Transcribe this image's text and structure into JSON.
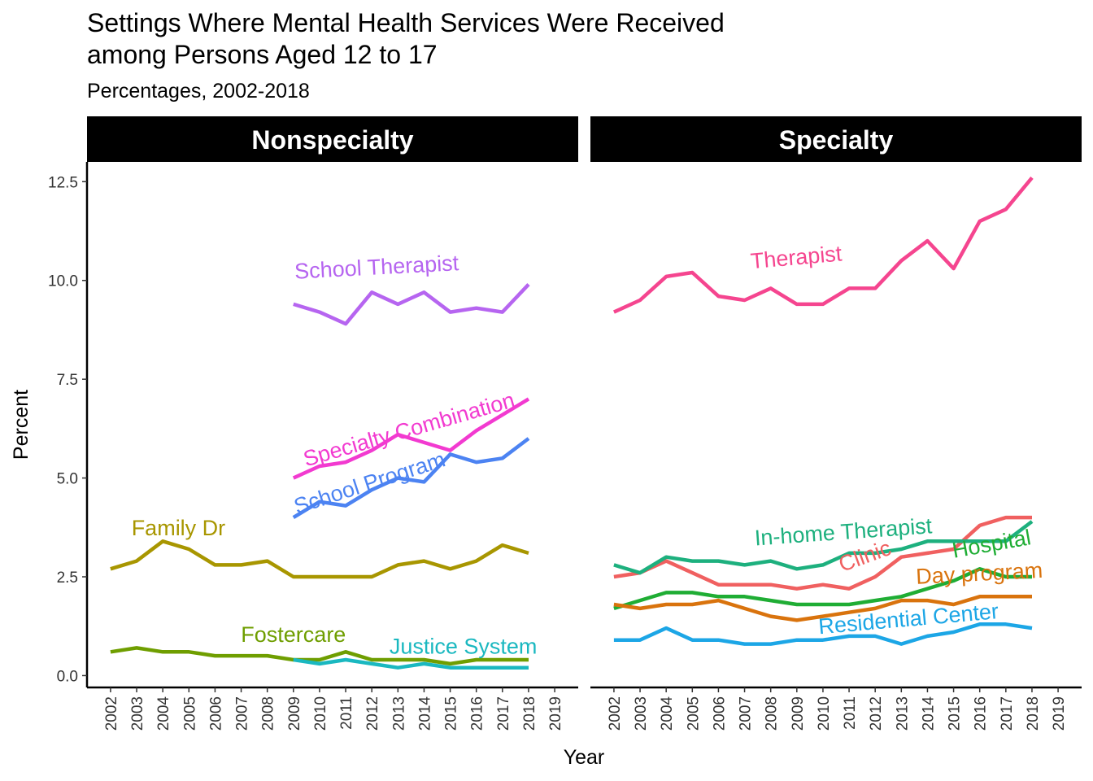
{
  "chart_data": {
    "type": "line",
    "title_line1": "Settings Where Mental Health Services Were Received",
    "title_line2": "among Persons Aged 12 to 17",
    "subtitle": "Percentages, 2002-2018",
    "xlabel": "Year",
    "ylabel": "Percent",
    "ylim": [
      -0.3,
      13.0
    ],
    "y_ticks": [
      "0.0",
      "2.5",
      "5.0",
      "7.5",
      "10.0",
      "12.5"
    ],
    "x_ticks": [
      "2002",
      "2003",
      "2004",
      "2005",
      "2006",
      "2007",
      "2008",
      "2009",
      "2010",
      "2011",
      "2012",
      "2013",
      "2014",
      "2015",
      "2016",
      "2017",
      "2018",
      "2019"
    ],
    "grid": false,
    "panels": [
      {
        "title": "Nonspecialty",
        "series": [
          {
            "name": "School Therapist",
            "color": "#b665f0",
            "x": [
              2009,
              2010,
              2011,
              2012,
              2013,
              2014,
              2015,
              2016,
              2017,
              2018
            ],
            "values": [
              9.4,
              9.2,
              8.9,
              9.7,
              9.4,
              9.7,
              9.2,
              9.3,
              9.2,
              9.9
            ]
          },
          {
            "name": "Specialty Combination",
            "color": "#f23ad0",
            "x": [
              2009,
              2010,
              2011,
              2012,
              2013,
              2014,
              2015,
              2016,
              2017,
              2018
            ],
            "values": [
              5.0,
              5.3,
              5.4,
              5.7,
              6.1,
              5.9,
              5.7,
              6.2,
              6.6,
              7.0
            ]
          },
          {
            "name": "School Program",
            "color": "#4c83f2",
            "x": [
              2009,
              2010,
              2011,
              2012,
              2013,
              2014,
              2015,
              2016,
              2017,
              2018
            ],
            "values": [
              4.0,
              4.4,
              4.3,
              4.7,
              5.0,
              4.9,
              5.6,
              5.4,
              5.5,
              6.0
            ]
          },
          {
            "name": "Family Dr",
            "color": "#a89600",
            "x": [
              2002,
              2003,
              2004,
              2005,
              2006,
              2007,
              2008,
              2009,
              2010,
              2011,
              2012,
              2013,
              2014,
              2015,
              2016,
              2017,
              2018
            ],
            "values": [
              2.7,
              2.9,
              3.4,
              3.2,
              2.8,
              2.8,
              2.9,
              2.5,
              2.5,
              2.5,
              2.5,
              2.8,
              2.9,
              2.7,
              2.9,
              3.3,
              3.1
            ]
          },
          {
            "name": "Fostercare",
            "color": "#6f9e00",
            "x": [
              2002,
              2003,
              2004,
              2005,
              2006,
              2007,
              2008,
              2009,
              2010,
              2011,
              2012,
              2013,
              2014,
              2015,
              2016,
              2017,
              2018
            ],
            "values": [
              0.6,
              0.7,
              0.6,
              0.6,
              0.5,
              0.5,
              0.5,
              0.4,
              0.4,
              0.6,
              0.4,
              0.4,
              0.4,
              0.3,
              0.4,
              0.4,
              0.4
            ]
          },
          {
            "name": "Justice System",
            "color": "#1ab8c0",
            "x": [
              2009,
              2010,
              2011,
              2012,
              2013,
              2014,
              2015,
              2016,
              2017,
              2018
            ],
            "values": [
              0.4,
              0.3,
              0.4,
              0.3,
              0.2,
              0.3,
              0.2,
              0.2,
              0.2,
              0.2
            ]
          }
        ],
        "labels": [
          {
            "text": "School Therapist",
            "series": "School Therapist",
            "x": 2012.2,
            "y": 10.15,
            "angle": -3
          },
          {
            "text": "Specialty Combination",
            "series": "Specialty Combination",
            "x": 2013.5,
            "y": 6.05,
            "angle": -16
          },
          {
            "text": "School Program",
            "series": "School Program",
            "x": 2012.0,
            "y": 4.7,
            "angle": -18
          },
          {
            "text": "Family Dr",
            "series": "Family Dr",
            "x": 2004.6,
            "y": 3.55,
            "angle": 0
          },
          {
            "text": "Fostercare",
            "series": "Fostercare",
            "x": 2009.0,
            "y": 0.85,
            "angle": 0
          },
          {
            "text": "Justice System",
            "series": "Justice System",
            "x": 2015.5,
            "y": 0.55,
            "angle": 0
          }
        ]
      },
      {
        "title": "Specialty",
        "series": [
          {
            "name": "Therapist",
            "color": "#f5458f",
            "x": [
              2002,
              2003,
              2004,
              2005,
              2006,
              2007,
              2008,
              2009,
              2010,
              2011,
              2012,
              2013,
              2014,
              2015,
              2016,
              2017,
              2018
            ],
            "values": [
              9.2,
              9.5,
              10.1,
              10.2,
              9.6,
              9.5,
              9.8,
              9.4,
              9.4,
              9.8,
              9.8,
              10.5,
              11.0,
              10.3,
              11.5,
              11.8,
              12.6
            ]
          },
          {
            "name": "Clinic",
            "color": "#f06060",
            "x": [
              2002,
              2003,
              2004,
              2005,
              2006,
              2007,
              2008,
              2009,
              2010,
              2011,
              2012,
              2013,
              2014,
              2015,
              2016,
              2017,
              2018
            ],
            "values": [
              2.5,
              2.6,
              2.9,
              2.6,
              2.3,
              2.3,
              2.3,
              2.2,
              2.3,
              2.2,
              2.5,
              3.0,
              3.1,
              3.2,
              3.8,
              4.0,
              4.0
            ]
          },
          {
            "name": "In-home Therapist",
            "color": "#1db07e",
            "x": [
              2002,
              2003,
              2004,
              2005,
              2006,
              2007,
              2008,
              2009,
              2010,
              2011,
              2012,
              2013,
              2014,
              2015,
              2016,
              2017,
              2018
            ],
            "values": [
              2.8,
              2.6,
              3.0,
              2.9,
              2.9,
              2.8,
              2.9,
              2.7,
              2.8,
              3.1,
              3.1,
              3.2,
              3.4,
              3.4,
              3.4,
              3.4,
              3.9
            ]
          },
          {
            "name": "Hospital",
            "color": "#1fad34",
            "x": [
              2002,
              2003,
              2004,
              2005,
              2006,
              2007,
              2008,
              2009,
              2010,
              2011,
              2012,
              2013,
              2014,
              2015,
              2016,
              2017,
              2018
            ],
            "values": [
              1.7,
              1.9,
              2.1,
              2.1,
              2.0,
              2.0,
              1.9,
              1.8,
              1.8,
              1.8,
              1.9,
              2.0,
              2.2,
              2.4,
              2.7,
              2.5,
              2.5
            ]
          },
          {
            "name": "Day program",
            "color": "#d9730d",
            "x": [
              2002,
              2003,
              2004,
              2005,
              2006,
              2007,
              2008,
              2009,
              2010,
              2011,
              2012,
              2013,
              2014,
              2015,
              2016,
              2017,
              2018
            ],
            "values": [
              1.8,
              1.7,
              1.8,
              1.8,
              1.9,
              1.7,
              1.5,
              1.4,
              1.5,
              1.6,
              1.7,
              1.9,
              1.9,
              1.8,
              2.0,
              2.0,
              2.0
            ]
          },
          {
            "name": "Residential Center",
            "color": "#1ca6e6",
            "x": [
              2002,
              2003,
              2004,
              2005,
              2006,
              2007,
              2008,
              2009,
              2010,
              2011,
              2012,
              2013,
              2014,
              2015,
              2016,
              2017,
              2018
            ],
            "values": [
              0.9,
              0.9,
              1.2,
              0.9,
              0.9,
              0.8,
              0.8,
              0.9,
              0.9,
              1.0,
              1.0,
              0.8,
              1.0,
              1.1,
              1.3,
              1.3,
              1.2
            ]
          }
        ],
        "labels": [
          {
            "text": "Therapist",
            "series": "Therapist",
            "x": 2009.0,
            "y": 10.4,
            "angle": -5
          },
          {
            "text": "In-home Therapist",
            "series": "In-home Therapist",
            "x": 2010.8,
            "y": 3.45,
            "angle": -4
          },
          {
            "text": "Clinic",
            "series": "Clinic",
            "x": 2011.7,
            "y": 2.85,
            "angle": -20
          },
          {
            "text": "Hospital",
            "series": "Hospital",
            "x": 2016.5,
            "y": 3.15,
            "angle": -10
          },
          {
            "text": "Day program",
            "series": "Day program",
            "x": 2016.0,
            "y": 2.4,
            "angle": -3
          },
          {
            "text": "Residential Center",
            "series": "Residential Center",
            "x": 2013.3,
            "y": 1.25,
            "angle": -5
          }
        ]
      }
    ]
  }
}
